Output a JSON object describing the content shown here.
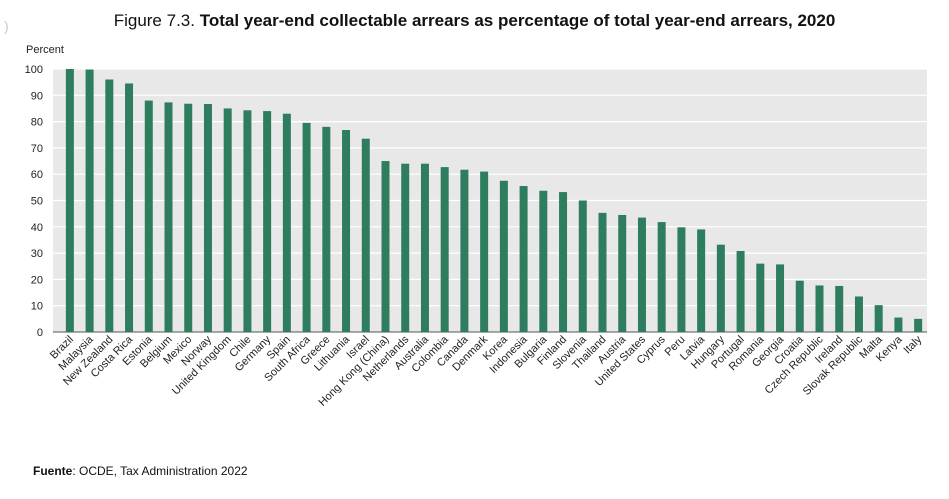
{
  "header": {
    "side_mark": ")",
    "figure_prefix": "Figure 7.3.",
    "figure_title": "Total year-end collectable arrears as percentage of total year-end arrears, 2020"
  },
  "source": {
    "label": "Fuente",
    "text": ": OCDE, Tax Administration 2022"
  },
  "colors": {
    "bar": "#2e7d5e",
    "plot_background": "#e8e8e8",
    "grid": "#ffffff"
  },
  "chart_data": {
    "type": "bar",
    "ylabel": "Percent",
    "ylim": [
      0,
      100
    ],
    "yticks": [
      0,
      10,
      20,
      30,
      40,
      50,
      60,
      70,
      80,
      90,
      100
    ],
    "grid": true,
    "categories": [
      "Brazil",
      "Malaysia",
      "New Zealand",
      "Costa Rica",
      "Estonia",
      "Belgium",
      "Mexico",
      "Norway",
      "United Kingdom",
      "Chile",
      "Germany",
      "Spain",
      "South Africa",
      "Greece",
      "Lithuania",
      "Israel",
      "Hong Kong (China)",
      "Netherlands",
      "Australia",
      "Colombia",
      "Canada",
      "Denmark",
      "Korea",
      "Indonesia",
      "Bulgaria",
      "Finland",
      "Slovenia",
      "Thailand",
      "Austria",
      "United States",
      "Cyprus",
      "Peru",
      "Latvia",
      "Hungary",
      "Portugal",
      "Romania",
      "Georgia",
      "Croatia",
      "Czech Republic",
      "Ireland",
      "Slovak Republic",
      "Malta",
      "Kenya",
      "Italy"
    ],
    "values": [
      100,
      99.8,
      96,
      94.5,
      88,
      87.3,
      86.8,
      86.7,
      85,
      84.3,
      84,
      83,
      79.5,
      78,
      76.8,
      73.5,
      65,
      64,
      64,
      62.7,
      61.7,
      61,
      57.5,
      55.5,
      53.7,
      53.2,
      50,
      45.3,
      44.5,
      43.5,
      41.8,
      39.8,
      39,
      33.2,
      30.8,
      26,
      25.7,
      19.5,
      17.7,
      17.5,
      13.5,
      10.2,
      5.5,
      5
    ]
  }
}
